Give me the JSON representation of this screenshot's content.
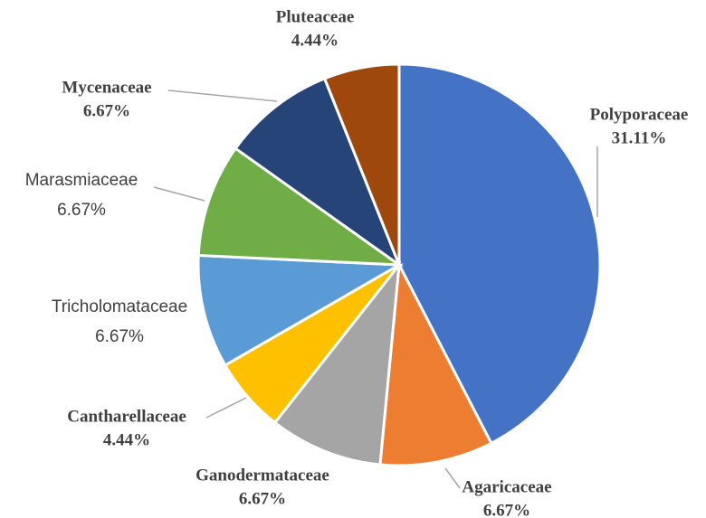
{
  "chart_data": {
    "type": "pie",
    "categories": [
      "Polyporaceae",
      "Agaricaceae",
      "Ganodermataceae",
      "Cantharellaceae",
      "Tricholomataceae",
      "Marasmiaceae",
      "Mycenaceae",
      "Pluteaceae"
    ],
    "values": [
      31.11,
      6.67,
      6.67,
      4.44,
      6.67,
      6.67,
      6.67,
      4.44
    ],
    "value_labels": [
      "31.11%",
      "6.67%",
      "6.67%",
      "4.44%",
      "6.67%",
      "6.67%",
      "6.67%",
      "4.44%"
    ],
    "colors": [
      "#4472c4",
      "#ed7d31",
      "#a5a5a5",
      "#ffc000",
      "#5b9bd5",
      "#70ad47",
      "#264478",
      "#9e480e"
    ]
  }
}
